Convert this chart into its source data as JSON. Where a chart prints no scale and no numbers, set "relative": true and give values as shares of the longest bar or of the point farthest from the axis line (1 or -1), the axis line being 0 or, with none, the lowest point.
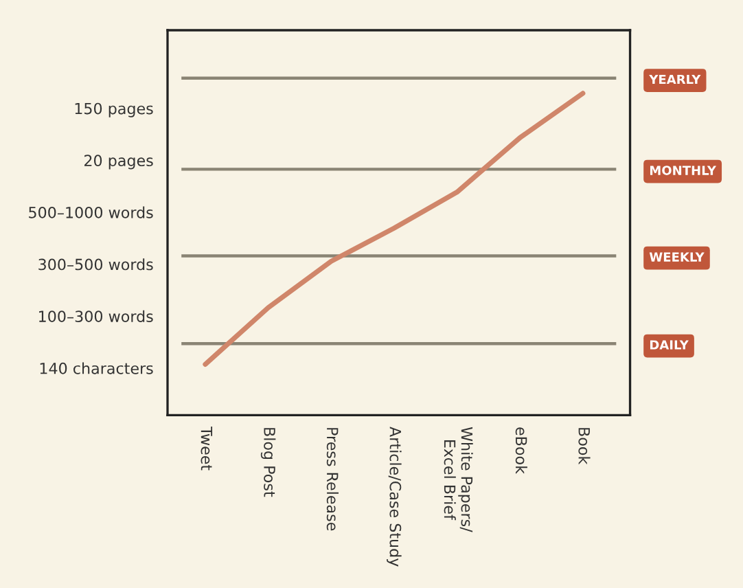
{
  "chart_data": {
    "type": "line",
    "relative": true,
    "categories": [
      "Tweet",
      "Blog Post",
      "Press Release",
      "Article/Case Study",
      "White Papers/\nExcel Brief",
      "eBook",
      "Book"
    ],
    "series": [
      {
        "color": "#d0866a",
        "values": [
          0.158,
          0.334,
          0.478,
          0.581,
          0.693,
          0.862,
          1
        ]
      }
    ],
    "annotations": [
      "140 characters",
      "100–300 words",
      "300–500 words",
      "500–1000 words",
      "20 pages",
      "150 pages"
    ],
    "ref_lines": [
      {
        "axis": "y",
        "value": 1.047,
        "label": "YEARLY",
        "color": "#8a8474"
      },
      {
        "axis": "y",
        "value": 0.764,
        "label": "MONTHLY",
        "color": "#8a8474"
      },
      {
        "axis": "y",
        "value": 0.495,
        "label": "WEEKLY",
        "color": "#8a8474"
      },
      {
        "axis": "y",
        "value": 0.222,
        "label": "DAILY",
        "color": "#8a8474"
      }
    ],
    "grid": false,
    "legend": false,
    "marker": "none",
    "line_style": "solid"
  }
}
